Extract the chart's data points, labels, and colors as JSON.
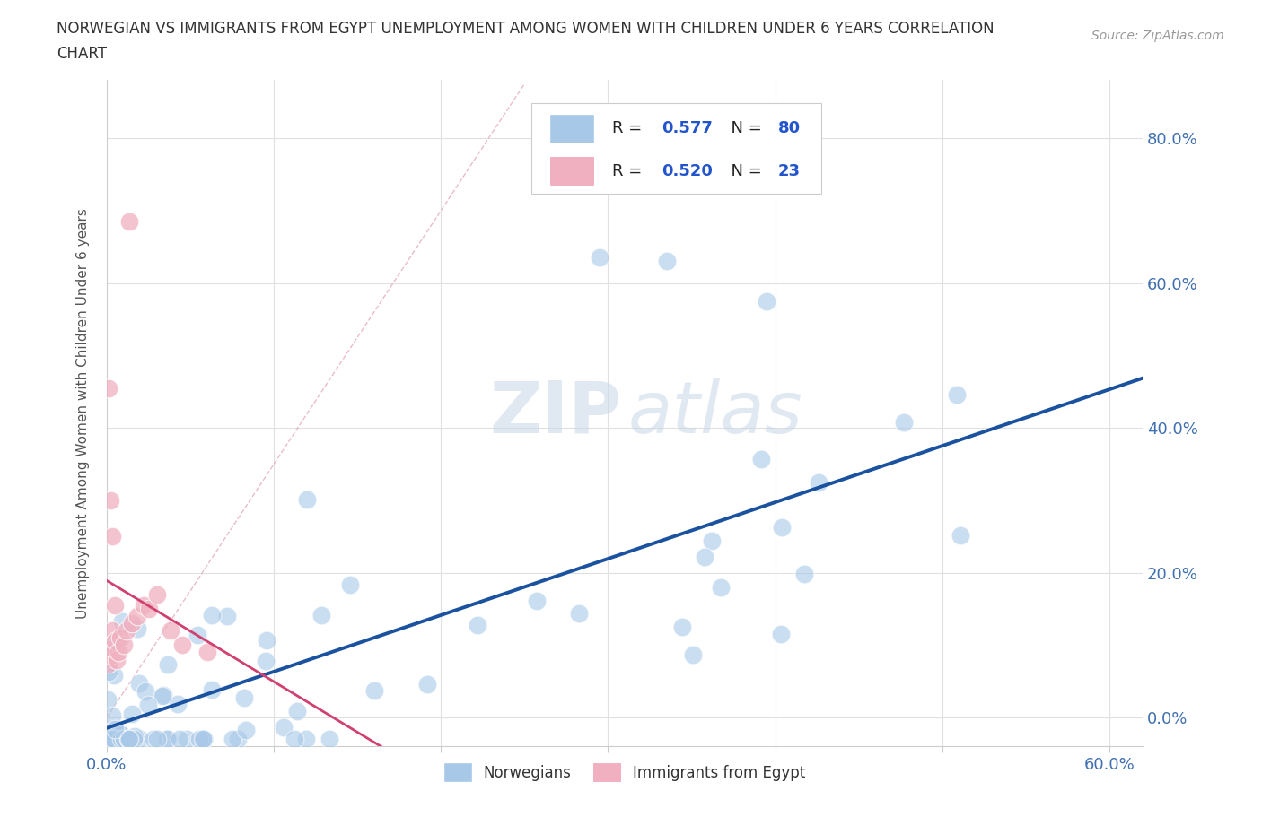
{
  "title_line1": "NORWEGIAN VS IMMIGRANTS FROM EGYPT UNEMPLOYMENT AMONG WOMEN WITH CHILDREN UNDER 6 YEARS CORRELATION",
  "title_line2": "CHART",
  "source": "Source: ZipAtlas.com",
  "ylabel": "Unemployment Among Women with Children Under 6 years",
  "xlim": [
    0.0,
    0.62
  ],
  "ylim": [
    -0.04,
    0.88
  ],
  "xticks": [
    0.0,
    0.1,
    0.2,
    0.3,
    0.4,
    0.5,
    0.6
  ],
  "yticks": [
    0.0,
    0.2,
    0.4,
    0.6,
    0.8
  ],
  "R_norwegian": 0.577,
  "N_norwegian": 80,
  "R_egypt": 0.52,
  "N_egypt": 23,
  "norwegian_color": "#a8c8e8",
  "norway_line_color": "#1a52a0",
  "egypt_color": "#f0b0c0",
  "egypt_line_color": "#d04070",
  "egypt_dashed_color": "#e8a0b0",
  "background_color": "#ffffff",
  "grid_color": "#e0e0e0",
  "tick_color": "#4070b0",
  "label_color": "#555555",
  "title_color": "#333333"
}
